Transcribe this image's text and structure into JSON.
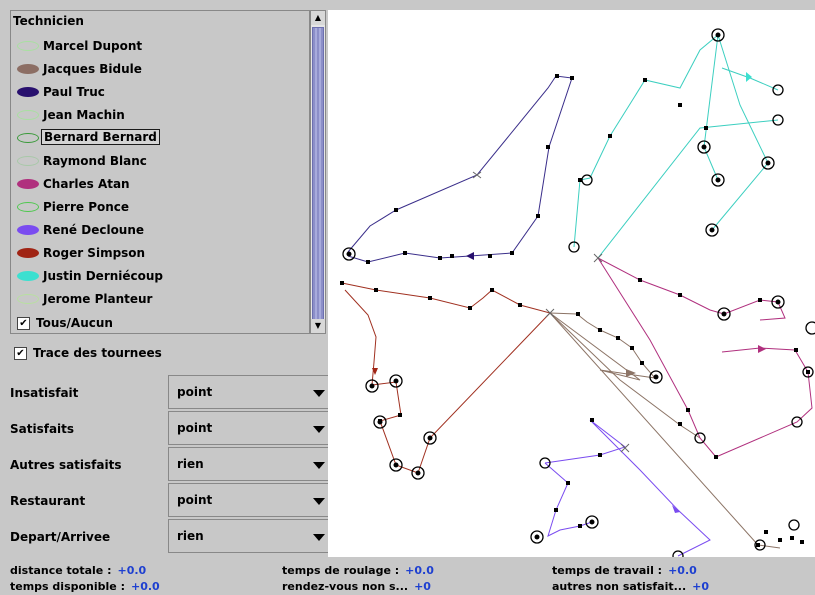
{
  "technicians": {
    "header": "Technicien",
    "items": [
      {
        "label": "Marcel Dupont",
        "color": "#a8e0a0",
        "filled": false
      },
      {
        "label": "Jacques Bidule",
        "color": "#8c6e64",
        "filled": true
      },
      {
        "label": "Paul Truc",
        "color": "#28106e",
        "filled": true
      },
      {
        "label": "Jean Machin",
        "color": "#a8e0a0",
        "filled": false
      },
      {
        "label": "Bernard Bernard",
        "color": "#3a9a3a",
        "filled": false,
        "selected": true
      },
      {
        "label": "Raymond Blanc",
        "color": "#a8c8a8",
        "filled": false
      },
      {
        "label": "Charles Atan",
        "color": "#b0307e",
        "filled": true
      },
      {
        "label": "Pierre Ponce",
        "color": "#50c850",
        "filled": false
      },
      {
        "label": "René Decloune",
        "color": "#7a4cf0",
        "filled": true
      },
      {
        "label": "Roger Simpson",
        "color": "#a02414",
        "filled": true
      },
      {
        "label": "Justin Derniécoup",
        "color": "#3ce0d0",
        "filled": true
      },
      {
        "label": "Jerome Planteur",
        "color": "#b8e0a0",
        "filled": false
      }
    ],
    "all_label": "Tous/Aucun",
    "all_checked": true
  },
  "trace": {
    "label": "Trace des tournees",
    "checked": true
  },
  "options": [
    {
      "label": "Insatisfait",
      "value": "point"
    },
    {
      "label": "Satisfaits",
      "value": "point"
    },
    {
      "label": "Autres satisfaits",
      "value": "rien"
    },
    {
      "label": "Restaurant",
      "value": "point"
    },
    {
      "label": "Depart/Arrivee",
      "value": "rien"
    }
  ],
  "status": {
    "distance_totale": {
      "label": "distance totale :",
      "value": "+0.0"
    },
    "temps_disponible": {
      "label": "temps disponible :",
      "value": "+0.0"
    },
    "temps_roulage": {
      "label": "temps de roulage :",
      "value": "+0.0"
    },
    "rdv_non_satisfaits": {
      "label": "rendez-vous non s...",
      "value": "+0"
    },
    "temps_travail": {
      "label": "temps de travail :",
      "value": "+0.0"
    },
    "autres_non_satisfaits": {
      "label": "autres non satisfait...",
      "value": "+0"
    }
  }
}
